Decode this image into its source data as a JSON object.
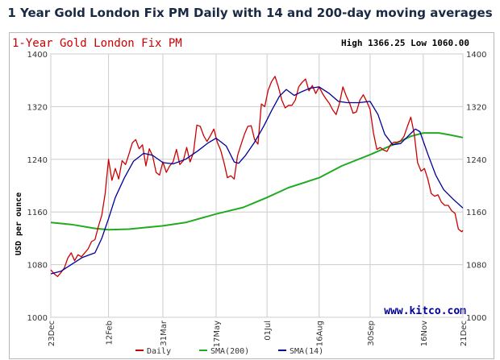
{
  "page_title": "1 Year Gold London Fix PM Daily with 14 and 200-day moving averages",
  "watermark": "www.kitco.com",
  "colors": {
    "daily": "#cc0000",
    "sma200": "#22aa22",
    "sma14": "#000099",
    "grid": "#cccccc",
    "title_red": "#cc0000",
    "watermark": "#000099"
  },
  "chart_data": {
    "type": "line",
    "title": "1-Year Gold London Fix PM",
    "stats": "High 1366.25 Low 1060.00",
    "ylabel": "USD per ounce",
    "ylim": [
      1000,
      1400
    ],
    "yticks": [
      1000,
      1080,
      1160,
      1240,
      1320,
      1400
    ],
    "grid": true,
    "legend_position": "bottom-center",
    "xticks": [
      {
        "label": "23Dec",
        "date": "2015-12-23"
      },
      {
        "label": "12Feb",
        "date": "2016-02-12"
      },
      {
        "label": "31Mar",
        "date": "2016-03-31"
      },
      {
        "label": "17May",
        "date": "2016-05-17"
      },
      {
        "label": "01Jul",
        "date": "2016-07-01"
      },
      {
        "label": "16Aug",
        "date": "2016-08-16"
      },
      {
        "label": "30Sep",
        "date": "2016-09-30"
      },
      {
        "label": "16Nov",
        "date": "2016-11-16"
      },
      {
        "label": "21Dec",
        "date": "2016-12-21"
      }
    ],
    "series": [
      {
        "name": "Daily",
        "color": "#cc0000",
        "points": [
          [
            "2015-12-23",
            1072
          ],
          [
            "2015-12-26",
            1066
          ],
          [
            "2015-12-29",
            1062
          ],
          [
            "2016-01-01",
            1068
          ],
          [
            "2016-01-04",
            1075
          ],
          [
            "2016-01-07",
            1090
          ],
          [
            "2016-01-10",
            1098
          ],
          [
            "2016-01-13",
            1086
          ],
          [
            "2016-01-16",
            1095
          ],
          [
            "2016-01-19",
            1092
          ],
          [
            "2016-01-22",
            1098
          ],
          [
            "2016-01-25",
            1104
          ],
          [
            "2016-01-28",
            1115
          ],
          [
            "2016-01-31",
            1118
          ],
          [
            "2016-02-03",
            1138
          ],
          [
            "2016-02-06",
            1155
          ],
          [
            "2016-02-09",
            1188
          ],
          [
            "2016-02-12",
            1240
          ],
          [
            "2016-02-15",
            1208
          ],
          [
            "2016-02-18",
            1226
          ],
          [
            "2016-02-21",
            1210
          ],
          [
            "2016-02-24",
            1238
          ],
          [
            "2016-02-27",
            1232
          ],
          [
            "2016-03-01",
            1248
          ],
          [
            "2016-03-04",
            1265
          ],
          [
            "2016-03-07",
            1270
          ],
          [
            "2016-03-10",
            1256
          ],
          [
            "2016-03-13",
            1262
          ],
          [
            "2016-03-16",
            1230
          ],
          [
            "2016-03-19",
            1256
          ],
          [
            "2016-03-22",
            1245
          ],
          [
            "2016-03-25",
            1220
          ],
          [
            "2016-03-28",
            1216
          ],
          [
            "2016-03-31",
            1236
          ],
          [
            "2016-04-03",
            1220
          ],
          [
            "2016-04-06",
            1230
          ],
          [
            "2016-04-09",
            1236
          ],
          [
            "2016-04-12",
            1255
          ],
          [
            "2016-04-15",
            1232
          ],
          [
            "2016-04-18",
            1238
          ],
          [
            "2016-04-21",
            1258
          ],
          [
            "2016-04-24",
            1236
          ],
          [
            "2016-04-27",
            1250
          ],
          [
            "2016-04-30",
            1292
          ],
          [
            "2016-05-03",
            1290
          ],
          [
            "2016-05-06",
            1276
          ],
          [
            "2016-05-09",
            1267
          ],
          [
            "2016-05-12",
            1276
          ],
          [
            "2016-05-15",
            1286
          ],
          [
            "2016-05-18",
            1266
          ],
          [
            "2016-05-21",
            1254
          ],
          [
            "2016-05-24",
            1235
          ],
          [
            "2016-05-27",
            1212
          ],
          [
            "2016-05-30",
            1215
          ],
          [
            "2016-06-02",
            1210
          ],
          [
            "2016-06-05",
            1246
          ],
          [
            "2016-06-08",
            1262
          ],
          [
            "2016-06-11",
            1278
          ],
          [
            "2016-06-14",
            1290
          ],
          [
            "2016-06-17",
            1291
          ],
          [
            "2016-06-20",
            1270
          ],
          [
            "2016-06-23",
            1263
          ],
          [
            "2016-06-26",
            1324
          ],
          [
            "2016-06-29",
            1320
          ],
          [
            "2016-07-02",
            1345
          ],
          [
            "2016-07-05",
            1358
          ],
          [
            "2016-07-08",
            1366
          ],
          [
            "2016-07-11",
            1350
          ],
          [
            "2016-07-14",
            1330
          ],
          [
            "2016-07-17",
            1318
          ],
          [
            "2016-07-20",
            1322
          ],
          [
            "2016-07-23",
            1322
          ],
          [
            "2016-07-26",
            1330
          ],
          [
            "2016-07-29",
            1350
          ],
          [
            "2016-08-01",
            1357
          ],
          [
            "2016-08-04",
            1362
          ],
          [
            "2016-08-07",
            1344
          ],
          [
            "2016-08-10",
            1352
          ],
          [
            "2016-08-13",
            1340
          ],
          [
            "2016-08-16",
            1350
          ],
          [
            "2016-08-19",
            1340
          ],
          [
            "2016-08-22",
            1332
          ],
          [
            "2016-08-25",
            1325
          ],
          [
            "2016-08-28",
            1315
          ],
          [
            "2016-08-31",
            1308
          ],
          [
            "2016-09-03",
            1325
          ],
          [
            "2016-09-06",
            1350
          ],
          [
            "2016-09-09",
            1336
          ],
          [
            "2016-09-12",
            1325
          ],
          [
            "2016-09-15",
            1310
          ],
          [
            "2016-09-18",
            1312
          ],
          [
            "2016-09-21",
            1330
          ],
          [
            "2016-09-24",
            1338
          ],
          [
            "2016-09-27",
            1328
          ],
          [
            "2016-09-30",
            1316
          ],
          [
            "2016-10-03",
            1280
          ],
          [
            "2016-10-06",
            1255
          ],
          [
            "2016-10-09",
            1258
          ],
          [
            "2016-10-12",
            1254
          ],
          [
            "2016-10-15",
            1252
          ],
          [
            "2016-10-18",
            1262
          ],
          [
            "2016-10-21",
            1266
          ],
          [
            "2016-10-24",
            1266
          ],
          [
            "2016-10-27",
            1268
          ],
          [
            "2016-10-30",
            1275
          ],
          [
            "2016-11-02",
            1290
          ],
          [
            "2016-11-05",
            1304
          ],
          [
            "2016-11-08",
            1279
          ],
          [
            "2016-11-11",
            1235
          ],
          [
            "2016-11-14",
            1222
          ],
          [
            "2016-11-17",
            1226
          ],
          [
            "2016-11-20",
            1210
          ],
          [
            "2016-11-23",
            1188
          ],
          [
            "2016-11-26",
            1184
          ],
          [
            "2016-11-29",
            1186
          ],
          [
            "2016-12-02",
            1175
          ],
          [
            "2016-12-05",
            1170
          ],
          [
            "2016-12-08",
            1170
          ],
          [
            "2016-12-11",
            1162
          ],
          [
            "2016-12-14",
            1158
          ],
          [
            "2016-12-17",
            1134
          ],
          [
            "2016-12-20",
            1130
          ],
          [
            "2016-12-21",
            1132
          ]
        ]
      },
      {
        "name": "SMA(200)",
        "color": "#22aa22",
        "points": [
          [
            "2015-12-23",
            1144
          ],
          [
            "2016-01-10",
            1141
          ],
          [
            "2016-01-31",
            1135
          ],
          [
            "2016-02-12",
            1133
          ],
          [
            "2016-03-01",
            1134
          ],
          [
            "2016-03-31",
            1139
          ],
          [
            "2016-04-20",
            1144
          ],
          [
            "2016-05-17",
            1157
          ],
          [
            "2016-06-10",
            1167
          ],
          [
            "2016-07-01",
            1182
          ],
          [
            "2016-07-20",
            1197
          ],
          [
            "2016-08-16",
            1212
          ],
          [
            "2016-09-05",
            1230
          ],
          [
            "2016-09-30",
            1247
          ],
          [
            "2016-10-20",
            1262
          ],
          [
            "2016-11-05",
            1275
          ],
          [
            "2016-11-16",
            1280
          ],
          [
            "2016-11-30",
            1280
          ],
          [
            "2016-12-10",
            1277
          ],
          [
            "2016-12-21",
            1273
          ]
        ]
      },
      {
        "name": "SMA(14)",
        "color": "#000099",
        "points": [
          [
            "2015-12-23",
            1066
          ],
          [
            "2016-01-01",
            1070
          ],
          [
            "2016-01-10",
            1080
          ],
          [
            "2016-01-20",
            1091
          ],
          [
            "2016-01-31",
            1098
          ],
          [
            "2016-02-06",
            1120
          ],
          [
            "2016-02-12",
            1150
          ],
          [
            "2016-02-18",
            1182
          ],
          [
            "2016-02-26",
            1212
          ],
          [
            "2016-03-05",
            1237
          ],
          [
            "2016-03-14",
            1249
          ],
          [
            "2016-03-22",
            1246
          ],
          [
            "2016-03-31",
            1235
          ],
          [
            "2016-04-09",
            1233
          ],
          [
            "2016-04-20",
            1240
          ],
          [
            "2016-05-01",
            1253
          ],
          [
            "2016-05-10",
            1265
          ],
          [
            "2016-05-17",
            1272
          ],
          [
            "2016-05-26",
            1260
          ],
          [
            "2016-06-02",
            1236
          ],
          [
            "2016-06-06",
            1234
          ],
          [
            "2016-06-12",
            1246
          ],
          [
            "2016-06-20",
            1266
          ],
          [
            "2016-06-28",
            1290
          ],
          [
            "2016-07-05",
            1314
          ],
          [
            "2016-07-12",
            1336
          ],
          [
            "2016-07-18",
            1346
          ],
          [
            "2016-07-25",
            1337
          ],
          [
            "2016-08-01",
            1343
          ],
          [
            "2016-08-08",
            1348
          ],
          [
            "2016-08-16",
            1350
          ],
          [
            "2016-08-25",
            1340
          ],
          [
            "2016-09-02",
            1328
          ],
          [
            "2016-09-10",
            1326
          ],
          [
            "2016-09-20",
            1326
          ],
          [
            "2016-09-30",
            1328
          ],
          [
            "2016-10-07",
            1308
          ],
          [
            "2016-10-13",
            1278
          ],
          [
            "2016-10-20",
            1262
          ],
          [
            "2016-10-27",
            1264
          ],
          [
            "2016-11-03",
            1276
          ],
          [
            "2016-11-09",
            1286
          ],
          [
            "2016-11-13",
            1282
          ],
          [
            "2016-11-20",
            1248
          ],
          [
            "2016-11-27",
            1216
          ],
          [
            "2016-12-04",
            1194
          ],
          [
            "2016-12-12",
            1180
          ],
          [
            "2016-12-21",
            1166
          ]
        ]
      }
    ]
  }
}
